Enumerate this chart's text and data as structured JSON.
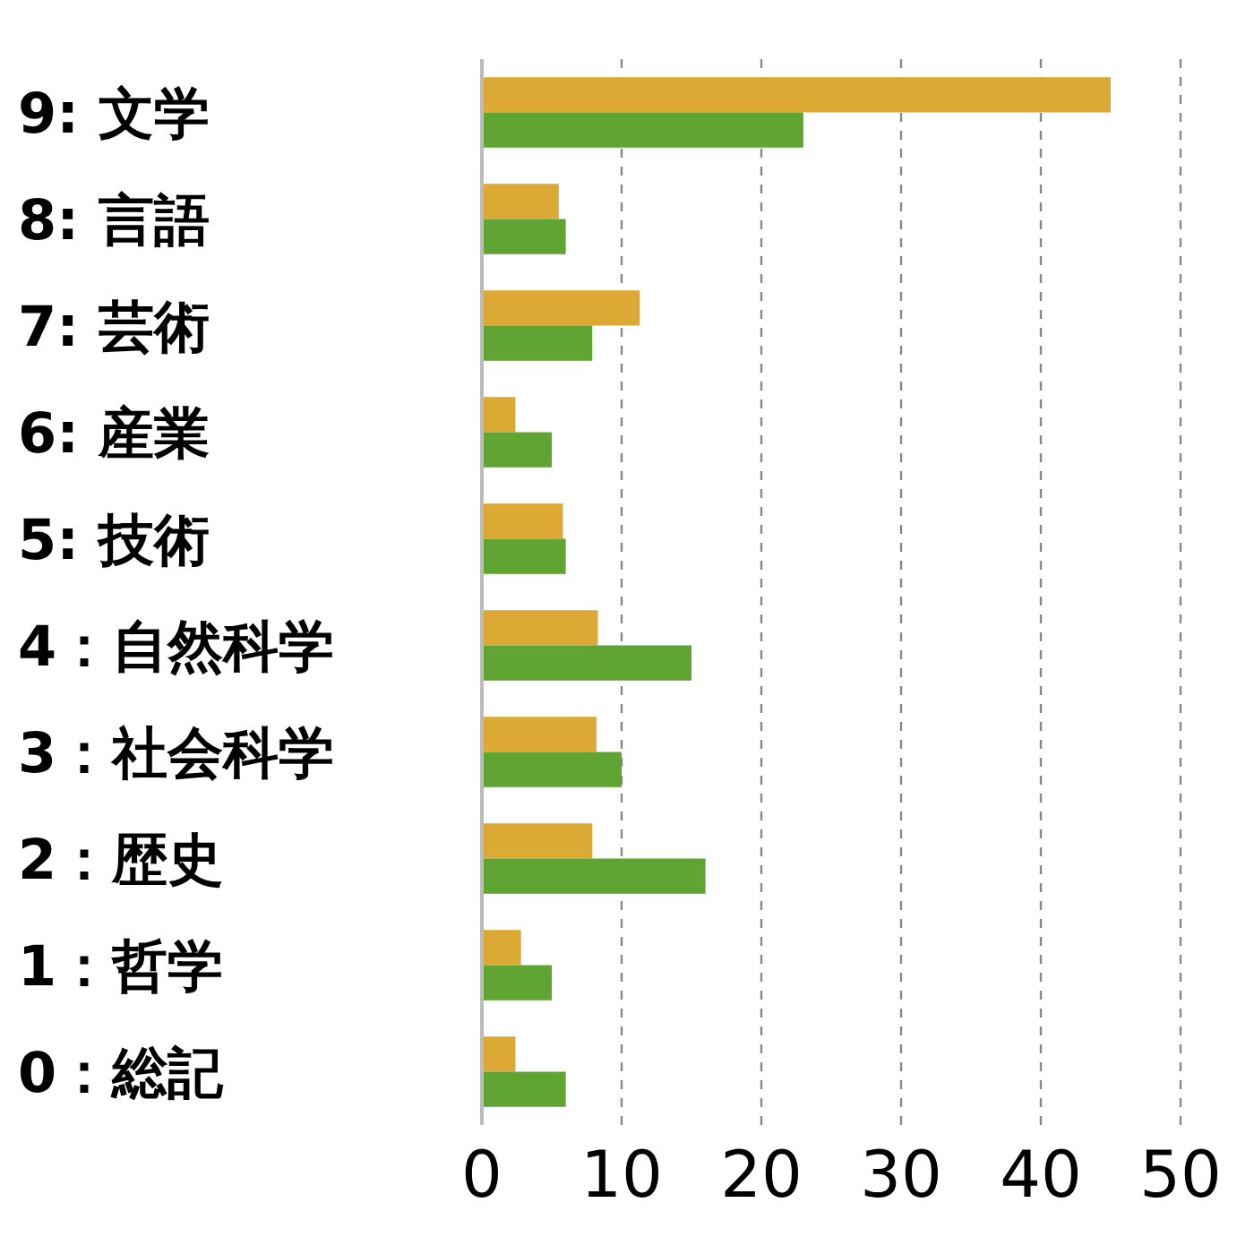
{
  "chart_data": {
    "type": "bar",
    "orientation": "horizontal",
    "categories": [
      "9: 文学",
      "8: 言語",
      "7: 芸術",
      "6: 産業",
      "5: 技術",
      "4：自然科学",
      "3：社会科学",
      "2：歴史",
      "1：哲学",
      "0：総記"
    ],
    "series": [
      {
        "color": "#dcaa34",
        "values": [
          45,
          5.5,
          11.3,
          2.4,
          5.8,
          8.3,
          8.2,
          7.9,
          2.8,
          2.4
        ]
      },
      {
        "color": "#60a534",
        "values": [
          23,
          6,
          7.9,
          5,
          6,
          15,
          10,
          16,
          5,
          6
        ]
      }
    ],
    "xlim": [
      0,
      50
    ],
    "xticks": [
      0,
      10,
      20,
      30,
      40,
      50
    ],
    "grid": "x"
  }
}
